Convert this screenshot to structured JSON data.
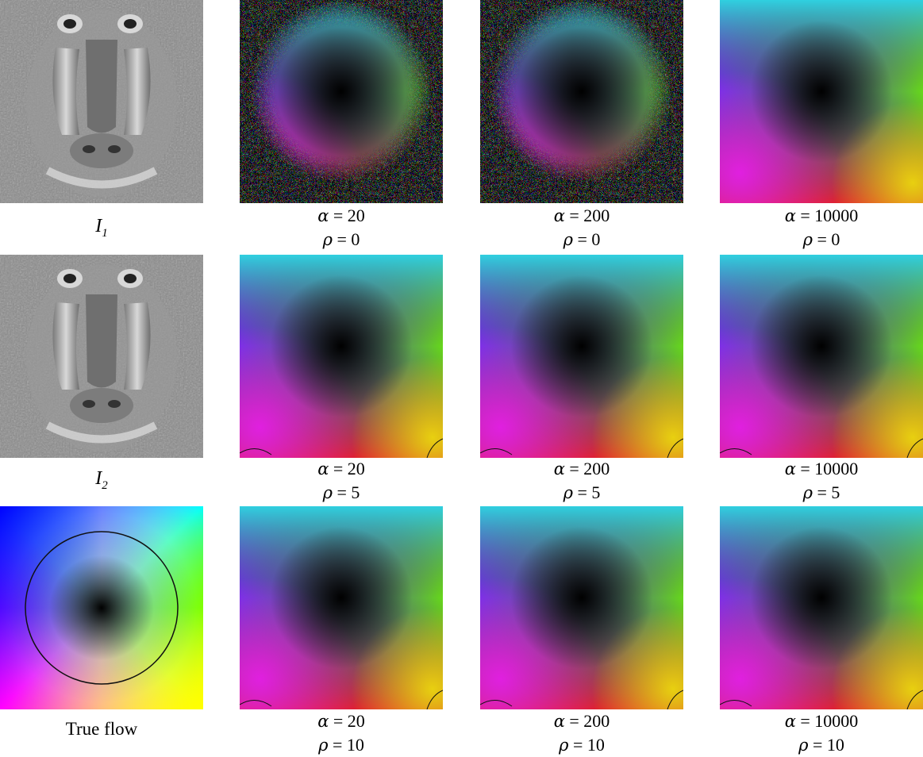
{
  "left_column": {
    "i1_label": "I",
    "i1_sub": "1",
    "i2_label": "I",
    "i2_sub": "2",
    "true_flow_label": "True flow"
  },
  "symbols": {
    "alpha": "α",
    "rho": "ρ",
    "equals": " = "
  },
  "rows": [
    {
      "rho": "0",
      "cells": [
        {
          "alpha": "20"
        },
        {
          "alpha": "200"
        },
        {
          "alpha": "10000"
        }
      ]
    },
    {
      "rho": "5",
      "cells": [
        {
          "alpha": "20"
        },
        {
          "alpha": "200"
        },
        {
          "alpha": "10000"
        }
      ]
    },
    {
      "rho": "10",
      "cells": [
        {
          "alpha": "20"
        },
        {
          "alpha": "200"
        },
        {
          "alpha": "10000"
        }
      ]
    }
  ],
  "colors": {
    "flow_center": "#000000",
    "flow_top": "#00ffff",
    "flow_left": "#4a2bff",
    "flow_right": "#00ff00",
    "flow_bottom": "#ff0000",
    "flow_bottom_left": "#ff00ff",
    "flow_bottom_right": "#ffff00",
    "baboon_gray": "#8a8a8a"
  }
}
